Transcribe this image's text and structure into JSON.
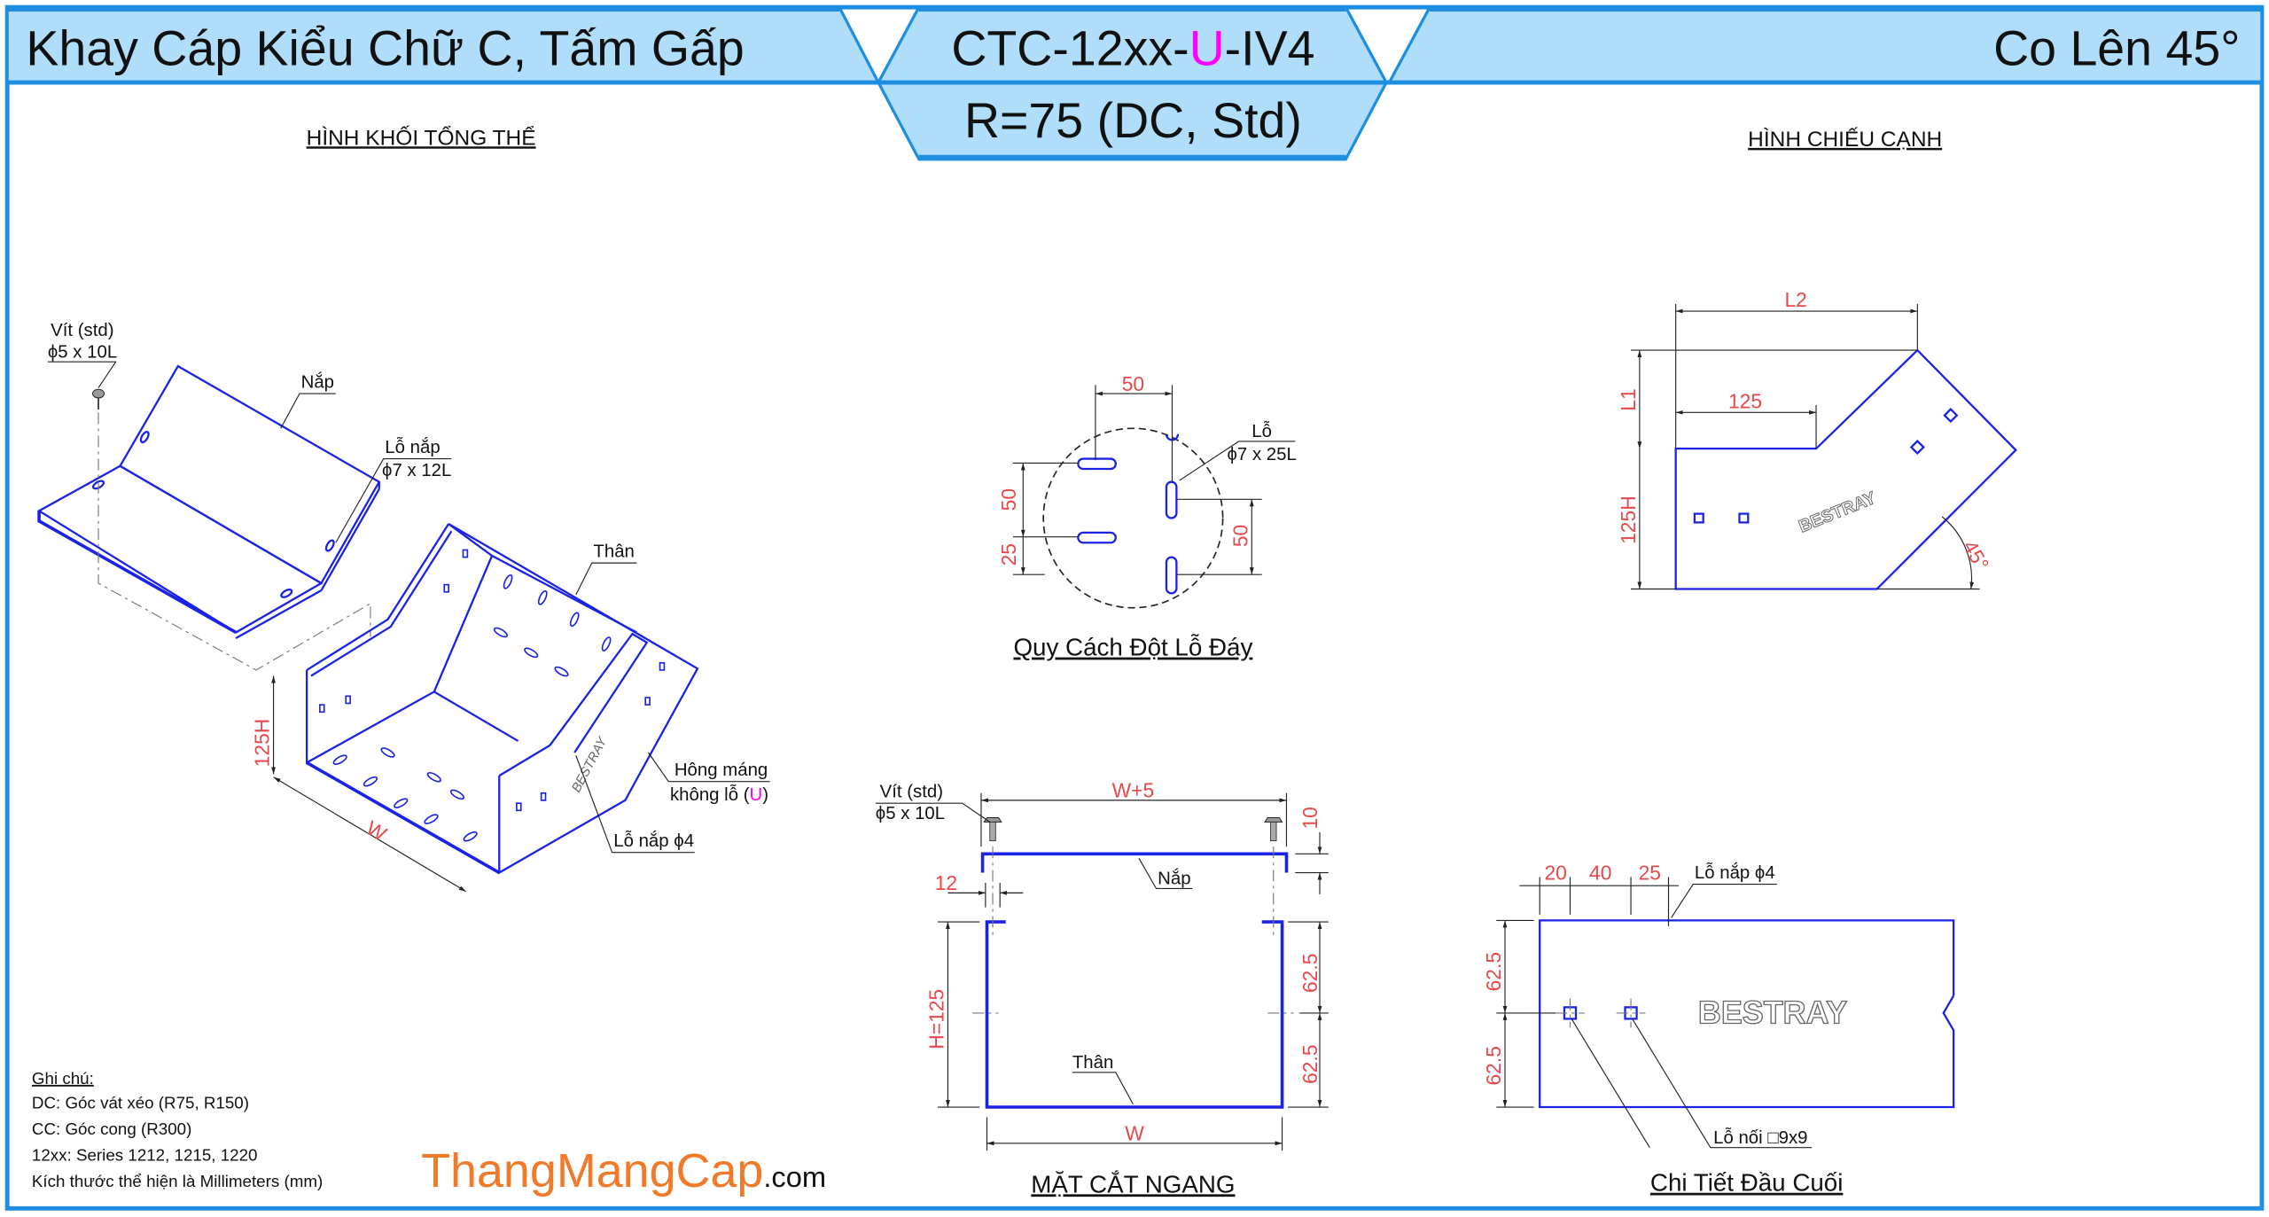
{
  "header": {
    "title_left": "Khay Cáp Kiểu Chữ C, Tấm Gấp",
    "code_prefix": "CTC-12xx-",
    "code_variant": "U",
    "code_suffix": "-IV4",
    "radius": "R=75 (DC, Std)",
    "title_right": "Co Lên 45°"
  },
  "colors": {
    "header_fill": "#b0defa",
    "frame": "#1e8fe0",
    "drawing": "#1a22e6",
    "dimension": "#e8474b",
    "variant": "#ff00ff",
    "brand": "#f07a2a"
  },
  "iso_view": {
    "title": "HÌNH KHỐI TỔNG THỂ",
    "screw_label": "Vít (std)",
    "screw_size": "ϕ5 x 10L",
    "cover_label": "Nắp",
    "cover_hole_label": "Lỗ nắp",
    "cover_hole_size": "ϕ7 x 12L",
    "body_label": "Thân",
    "side_label": "Hông máng",
    "side_note_prefix": "không lỗ (",
    "side_note_variant": "U",
    "side_note_suffix": ")",
    "cover_hole4_label": "Lỗ nắp ϕ4",
    "dim_height": "125H",
    "dim_width": "W",
    "brand_mark": "BESTRAY"
  },
  "hole_pattern": {
    "title": "Quy Cách Đột Lỗ Đáy",
    "hole_label": "Lỗ",
    "hole_size": "ϕ7 x 25L",
    "dim_top": "50",
    "dim_left": "50",
    "dim_left_small": "25",
    "dim_right": "50"
  },
  "side_view": {
    "title": "HÌNH CHIẾU CẠNH",
    "dim_l2": "L2",
    "dim_l1": "L1",
    "dim_125": "125",
    "dim_125h": "125H",
    "angle": "45°",
    "brand_mark": "BESTRAY"
  },
  "section": {
    "title": "MẶT CẮT NGANG",
    "screw_label": "Vít (std)",
    "screw_size": "ϕ5 x 10L",
    "dim_top": "W+5",
    "dim_bottom": "W",
    "dim_height": "H=125",
    "dim_half_1": "62.5",
    "dim_half_2": "62.5",
    "dim_flange": "10",
    "dim_lip": "12",
    "cover_label": "Nắp",
    "body_label": "Thân"
  },
  "end_detail": {
    "title": "Chi Tiết Đầu Cuối",
    "dim_a": "20",
    "dim_b": "40",
    "dim_c": "25",
    "hole_label": "Lỗ nắp ϕ4",
    "joint_label": "Lỗ nối □9x9",
    "dim_half_1": "62.5",
    "dim_half_2": "62.5",
    "brand_mark": "BESTRAY"
  },
  "notes": {
    "heading": "Ghi chú:",
    "lines": [
      "DC: Góc vát xéo (R75, R150)",
      "CC: Góc cong (R300)",
      "12xx: Series 1212, 1215, 1220",
      "Kích thước thể hiện là Millimeters (mm)"
    ]
  },
  "brand": {
    "name": "ThangMangCap",
    "suffix": ".com"
  }
}
